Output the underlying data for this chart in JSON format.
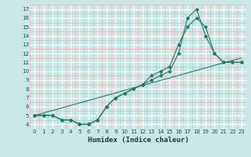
{
  "title": "",
  "xlabel": "Humidex (Indice chaleur)",
  "bg_color": "#c8e8e8",
  "line_color": "#1a7a6a",
  "grid_major_color": "#ffffff",
  "grid_minor_color": "#e8b0b0",
  "xlim": [
    -0.5,
    23.5
  ],
  "ylim": [
    3.5,
    17.5
  ],
  "xticks": [
    0,
    1,
    2,
    3,
    4,
    5,
    6,
    7,
    8,
    9,
    10,
    11,
    12,
    13,
    14,
    15,
    16,
    17,
    18,
    19,
    20,
    21,
    22,
    23
  ],
  "yticks": [
    4,
    5,
    6,
    7,
    8,
    9,
    10,
    11,
    12,
    13,
    14,
    15,
    16,
    17
  ],
  "line1_x": [
    0,
    1,
    2,
    3,
    4,
    5,
    6,
    7,
    8,
    9,
    10,
    11,
    12,
    13,
    14,
    15,
    16,
    17,
    18,
    19,
    20,
    21,
    22,
    23
  ],
  "line1_y": [
    5,
    5,
    5,
    4.5,
    4.5,
    4,
    4,
    4.5,
    6,
    7,
    7.5,
    8,
    8.5,
    9,
    9.5,
    10,
    12,
    16,
    17,
    14,
    12,
    11,
    11,
    11
  ],
  "line2_x": [
    0,
    1,
    2,
    3,
    4,
    5,
    6,
    7,
    8,
    9,
    10,
    11,
    12,
    13,
    14,
    15,
    16,
    17,
    18,
    19,
    20,
    21,
    22,
    23
  ],
  "line2_y": [
    5,
    5,
    5,
    4.5,
    4.5,
    4,
    4,
    4.5,
    6,
    7,
    7.5,
    8,
    8.5,
    9.5,
    10,
    10.5,
    13,
    15,
    16,
    15,
    12,
    11,
    11,
    11
  ],
  "line3_x": [
    0,
    23
  ],
  "line3_y": [
    5,
    11.5
  ]
}
